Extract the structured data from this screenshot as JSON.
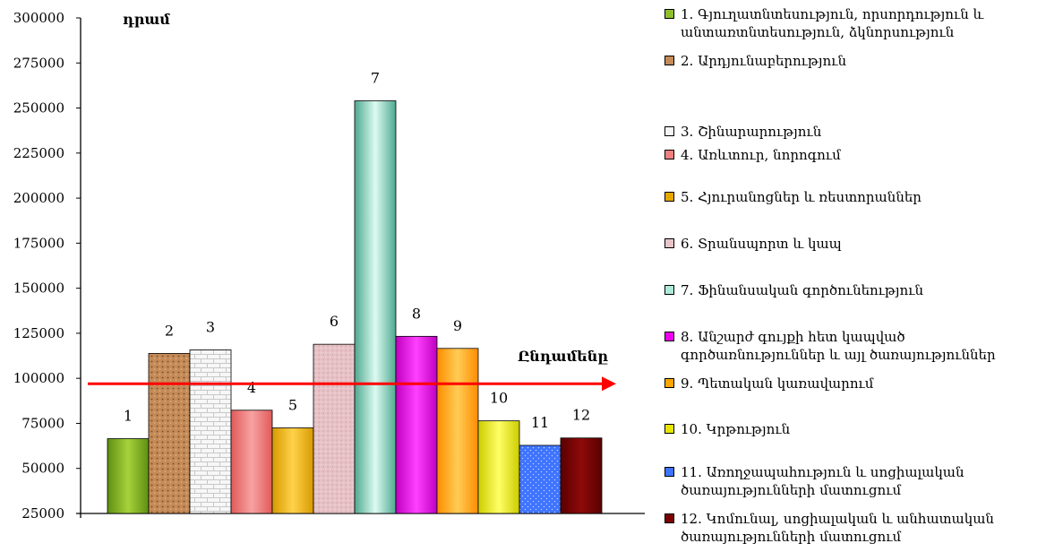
{
  "chart_data": {
    "type": "bar",
    "ylabel": "դրամ",
    "ylim": [
      25000,
      300000
    ],
    "yticks": [
      25000,
      50000,
      75000,
      100000,
      125000,
      150000,
      175000,
      200000,
      225000,
      250000,
      275000,
      300000
    ],
    "categories": [
      "1",
      "2",
      "3",
      "4",
      "5",
      "6",
      "7",
      "8",
      "9",
      "10",
      "11",
      "12"
    ],
    "values": [
      66500,
      113800,
      115800,
      82300,
      72500,
      118900,
      254000,
      123300,
      116600,
      76400,
      62800,
      66900
    ],
    "average_line": {
      "label": "Ընդամենը",
      "value": 97000,
      "color": "#ff0000"
    },
    "grid": false,
    "legend_position": "right",
    "series_colors": [
      "#8fbf2a",
      "#c48a58",
      "#f4f4f4",
      "#ef8080",
      "#e6a800",
      "#e8c4c8",
      "#aeeadb",
      "#ee00ee",
      "#ffa600",
      "#e6e600",
      "#3d73ff",
      "#7a0000"
    ],
    "legend": [
      "1. Գյուղատնտեսություն, որսորդություն և անտառտնտեսություն, ձկնորսություն",
      "2. Արդյունաբերություն",
      "3. Շինարարություն",
      "4. Առևտուր, նորոգում",
      "5. Հյուրանոցներ և ռեստորաններ",
      "6. Տրանսպորտ և կապ",
      "7. Ֆինանսական գործունեություն",
      "8. Անշարժ գույքի հետ կապված գործառնություններ և այլ ծառայություններ",
      "9. Պետական կառավարում",
      "10. Կրթություն",
      "11. Առողջապահություն և սոցիալական ծառայությունների մատուցում",
      "12. Կոմունալ, սոցիալական և անհատական ծառայությունների մատուցում"
    ]
  }
}
